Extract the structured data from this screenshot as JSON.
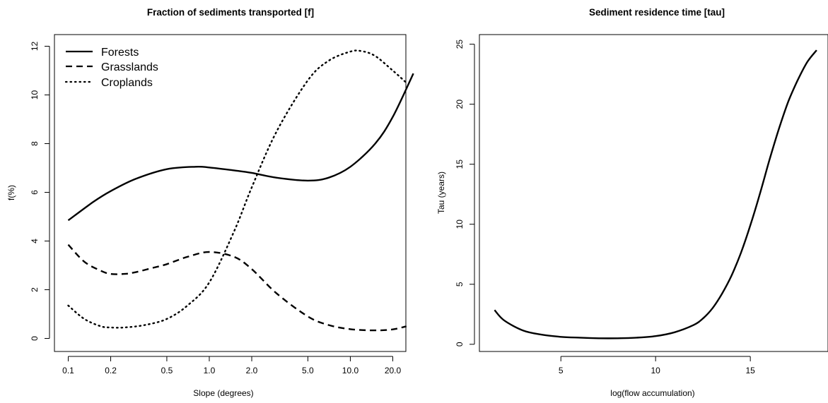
{
  "chart_data": [
    {
      "type": "line",
      "title": "Fraction of sediments transported [f]",
      "xlabel": "Slope (degrees)",
      "ylabel": "f(%)",
      "xscale": "log",
      "xlim": [
        0.1,
        30
      ],
      "ylim": [
        0,
        12
      ],
      "xticks": [
        0.1,
        0.2,
        0.5,
        1.0,
        2.0,
        5.0,
        10.0,
        20.0
      ],
      "xtick_labels": [
        "0.1",
        "0.2",
        "0.5",
        "1.0",
        "2.0",
        "5.0",
        "10.0",
        "20.0"
      ],
      "yticks": [
        0,
        2,
        4,
        6,
        8,
        10,
        12
      ],
      "ytick_labels": [
        "0",
        "2",
        "4",
        "6",
        "8",
        "10",
        "12"
      ],
      "legend_position": "top-left",
      "series": [
        {
          "name": "Forests",
          "line_style": "solid",
          "x": [
            0.1,
            0.15,
            0.2,
            0.3,
            0.5,
            0.8,
            1.0,
            1.5,
            2.0,
            3.0,
            5.0,
            7.0,
            10.0,
            15.0,
            20.0,
            28.0
          ],
          "y": [
            4.85,
            5.6,
            6.05,
            6.55,
            6.95,
            7.05,
            7.02,
            6.9,
            6.8,
            6.6,
            6.48,
            6.6,
            7.05,
            8.0,
            9.1,
            10.88
          ]
        },
        {
          "name": "Grasslands",
          "line_style": "dashed",
          "x": [
            0.1,
            0.13,
            0.17,
            0.2,
            0.25,
            0.3,
            0.4,
            0.5,
            0.7,
            1.0,
            1.5,
            2.0,
            3.0,
            5.0,
            7.0,
            10.0,
            15.0,
            20.0,
            25.0
          ],
          "y": [
            3.85,
            3.15,
            2.78,
            2.65,
            2.65,
            2.72,
            2.9,
            3.05,
            3.35,
            3.55,
            3.35,
            2.85,
            1.85,
            0.9,
            0.55,
            0.38,
            0.33,
            0.37,
            0.5
          ]
        },
        {
          "name": "Croplands",
          "line_style": "dotted",
          "x": [
            0.1,
            0.13,
            0.17,
            0.2,
            0.25,
            0.35,
            0.5,
            0.7,
            1.0,
            1.5,
            2.0,
            3.0,
            5.0,
            7.0,
            10.0,
            12.0,
            15.0,
            20.0,
            25.0
          ],
          "y": [
            1.35,
            0.8,
            0.5,
            0.45,
            0.45,
            0.55,
            0.8,
            1.35,
            2.3,
            4.4,
            6.2,
            8.5,
            10.6,
            11.4,
            11.78,
            11.8,
            11.6,
            11.0,
            10.5
          ]
        }
      ]
    },
    {
      "type": "line",
      "title": "Sediment residence time [tau]",
      "xlabel": "log(flow accumulation)",
      "ylabel": "Tau (years)",
      "xlim": [
        0.7,
        19.1
      ],
      "ylim": [
        -0.6,
        25.8
      ],
      "xticks": [
        5,
        10,
        15
      ],
      "xtick_labels": [
        "5",
        "10",
        "15"
      ],
      "yticks": [
        0,
        5,
        10,
        15,
        20,
        25
      ],
      "ytick_labels": [
        "0",
        "5",
        "10",
        "15",
        "20",
        "25"
      ],
      "series": [
        {
          "line_style": "solid",
          "x": [
            1.5,
            2.0,
            3.0,
            4.0,
            5.0,
            6.0,
            7.0,
            8.0,
            9.0,
            10.0,
            11.0,
            12.0,
            12.5,
            13.0,
            13.5,
            14.0,
            14.5,
            15.0,
            15.5,
            16.0,
            16.5,
            17.0,
            17.5,
            18.0,
            18.5
          ],
          "y": [
            2.85,
            2.0,
            1.15,
            0.8,
            0.62,
            0.55,
            0.5,
            0.5,
            0.55,
            0.68,
            1.0,
            1.6,
            2.15,
            3.0,
            4.2,
            5.7,
            7.6,
            9.9,
            12.5,
            15.3,
            17.9,
            20.2,
            22.0,
            23.5,
            24.5
          ]
        }
      ]
    }
  ]
}
